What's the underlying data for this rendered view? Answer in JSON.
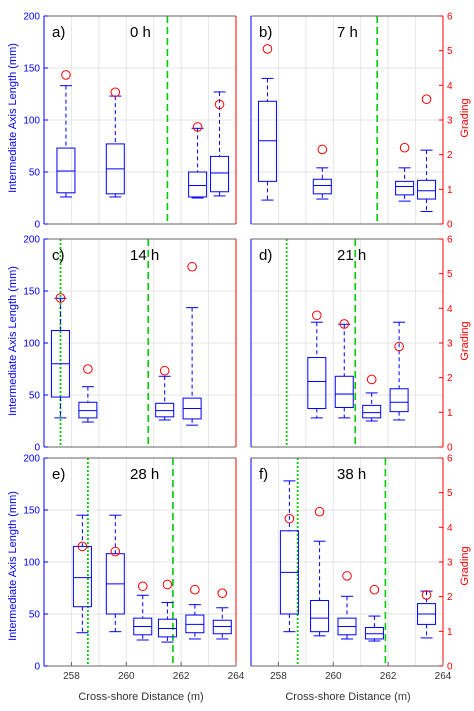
{
  "chart_data": {
    "type": "boxplot-panels",
    "ylabel_left": "Intermediate Axis Length (mm)",
    "ylabel_right": "Grading",
    "xlabel": "Cross-shore Distance (m)",
    "xlim": [
      257,
      264
    ],
    "xticks": [
      258,
      260,
      262,
      264
    ],
    "ylim_left": [
      0,
      200
    ],
    "yticks_left": [
      0,
      50,
      100,
      150,
      200
    ],
    "ylim_right": [
      0,
      6
    ],
    "yticks_right": [
      0,
      1,
      2,
      3,
      4,
      5,
      6
    ],
    "grid": true,
    "colors": {
      "box": "#0000ff",
      "grading": "#ff0000",
      "line_dashed": "#00cc00",
      "line_dotted": "#00cc00",
      "axis_left": "#0000ff",
      "axis_right": "#ff0000"
    },
    "panels": [
      {
        "label": "a)",
        "time": "0 h",
        "dashed_line_x": 261.5,
        "dotted_line_x": null,
        "boxes": [
          {
            "x": 257.8,
            "whisker_low": 26,
            "q1": 30,
            "median": 51,
            "q3": 73,
            "whisker_high": 133
          },
          {
            "x": 259.6,
            "whisker_low": 26,
            "q1": 29,
            "median": 53,
            "q3": 77,
            "whisker_high": 123
          },
          {
            "x": 262.6,
            "whisker_low": 25,
            "q1": 26,
            "median": 37,
            "q3": 50,
            "whisker_high": 92
          },
          {
            "x": 263.4,
            "whisker_low": 27,
            "q1": 31,
            "median": 49,
            "q3": 65,
            "whisker_high": 127
          }
        ],
        "grading": [
          {
            "x": 257.8,
            "value": 4.3
          },
          {
            "x": 259.6,
            "value": 3.8
          },
          {
            "x": 262.6,
            "value": 2.8
          },
          {
            "x": 263.4,
            "value": 3.45
          }
        ]
      },
      {
        "label": "b)",
        "time": "7 h",
        "dashed_line_x": 261.6,
        "dotted_line_x": null,
        "boxes": [
          {
            "x": 257.6,
            "whisker_low": 23,
            "q1": 41,
            "median": 80,
            "q3": 118,
            "whisker_high": 140
          },
          {
            "x": 259.6,
            "whisker_low": 24,
            "q1": 29,
            "median": 37,
            "q3": 43,
            "whisker_high": 54
          },
          {
            "x": 262.6,
            "whisker_low": 22,
            "q1": 28,
            "median": 36,
            "q3": 41,
            "whisker_high": 54
          },
          {
            "x": 263.4,
            "whisker_low": 12,
            "q1": 24,
            "median": 32,
            "q3": 42,
            "whisker_high": 71
          }
        ],
        "grading": [
          {
            "x": 257.6,
            "value": 5.05
          },
          {
            "x": 259.6,
            "value": 2.15
          },
          {
            "x": 262.6,
            "value": 2.2
          },
          {
            "x": 263.4,
            "value": 3.6
          }
        ]
      },
      {
        "label": "c)",
        "time": "14 h",
        "dashed_line_x": 260.8,
        "dotted_line_x": 257.6,
        "boxes": [
          {
            "x": 257.6,
            "whisker_low": 28,
            "q1": 48,
            "median": 80,
            "q3": 112,
            "whisker_high": 143
          },
          {
            "x": 258.6,
            "whisker_low": 24,
            "q1": 28,
            "median": 35,
            "q3": 43,
            "whisker_high": 58
          },
          {
            "x": 261.4,
            "whisker_low": 26,
            "q1": 29,
            "median": 35,
            "q3": 42,
            "whisker_high": 68
          },
          {
            "x": 262.4,
            "whisker_low": 21,
            "q1": 27,
            "median": 37,
            "q3": 47,
            "whisker_high": 134
          }
        ],
        "grading": [
          {
            "x": 257.6,
            "value": 4.3
          },
          {
            "x": 258.6,
            "value": 2.25
          },
          {
            "x": 261.4,
            "value": 2.2
          },
          {
            "x": 262.4,
            "value": 5.2
          }
        ]
      },
      {
        "label": "d)",
        "time": "21 h",
        "dashed_line_x": 260.8,
        "dotted_line_x": 258.3,
        "boxes": [
          {
            "x": 259.4,
            "whisker_low": 28,
            "q1": 37,
            "median": 63,
            "q3": 86,
            "whisker_high": 120
          },
          {
            "x": 260.4,
            "whisker_low": 28,
            "q1": 38,
            "median": 51,
            "q3": 68,
            "whisker_high": 118
          },
          {
            "x": 261.4,
            "whisker_low": 25,
            "q1": 28,
            "median": 33,
            "q3": 40,
            "whisker_high": 52
          },
          {
            "x": 262.4,
            "whisker_low": 26,
            "q1": 34,
            "median": 43,
            "q3": 56,
            "whisker_high": 120
          }
        ],
        "grading": [
          {
            "x": 259.4,
            "value": 3.8
          },
          {
            "x": 260.4,
            "value": 3.55
          },
          {
            "x": 261.4,
            "value": 1.95
          },
          {
            "x": 262.4,
            "value": 2.9
          }
        ]
      },
      {
        "label": "e)",
        "time": "28 h",
        "dashed_line_x": 261.7,
        "dotted_line_x": 258.6,
        "boxes": [
          {
            "x": 258.4,
            "whisker_low": 32,
            "q1": 57,
            "median": 85,
            "q3": 115,
            "whisker_high": 145
          },
          {
            "x": 259.6,
            "whisker_low": 33,
            "q1": 50,
            "median": 79,
            "q3": 108,
            "whisker_high": 145
          },
          {
            "x": 260.6,
            "whisker_low": 25,
            "q1": 30,
            "median": 38,
            "q3": 46,
            "whisker_high": 68
          },
          {
            "x": 261.5,
            "whisker_low": 23,
            "q1": 28,
            "median": 36,
            "q3": 45,
            "whisker_high": 61
          },
          {
            "x": 262.5,
            "whisker_low": 26,
            "q1": 32,
            "median": 40,
            "q3": 49,
            "whisker_high": 59
          },
          {
            "x": 263.5,
            "whisker_low": 26,
            "q1": 31,
            "median": 38,
            "q3": 44,
            "whisker_high": 56
          }
        ],
        "grading": [
          {
            "x": 258.4,
            "value": 3.45
          },
          {
            "x": 259.6,
            "value": 3.3
          },
          {
            "x": 260.6,
            "value": 2.3
          },
          {
            "x": 261.5,
            "value": 2.35
          },
          {
            "x": 262.5,
            "value": 2.2
          },
          {
            "x": 263.5,
            "value": 2.1
          }
        ]
      },
      {
        "label": "f)",
        "time": "38 h",
        "dashed_line_x": 261.9,
        "dotted_line_x": 258.7,
        "boxes": [
          {
            "x": 258.4,
            "whisker_low": 33,
            "q1": 50,
            "median": 90,
            "q3": 130,
            "whisker_high": 178
          },
          {
            "x": 259.5,
            "whisker_low": 29,
            "q1": 33,
            "median": 46,
            "q3": 63,
            "whisker_high": 120
          },
          {
            "x": 260.5,
            "whisker_low": 26,
            "q1": 30,
            "median": 38,
            "q3": 46,
            "whisker_high": 67
          },
          {
            "x": 261.5,
            "whisker_low": 24,
            "q1": 26,
            "median": 31,
            "q3": 37,
            "whisker_high": 48
          },
          {
            "x": 263.4,
            "whisker_low": 27,
            "q1": 40,
            "median": 50,
            "q3": 60,
            "whisker_high": 72
          }
        ],
        "grading": [
          {
            "x": 258.4,
            "value": 4.25
          },
          {
            "x": 259.5,
            "value": 4.45
          },
          {
            "x": 260.5,
            "value": 2.6
          },
          {
            "x": 261.5,
            "value": 2.2
          },
          {
            "x": 263.4,
            "value": 2.05
          }
        ]
      }
    ]
  }
}
